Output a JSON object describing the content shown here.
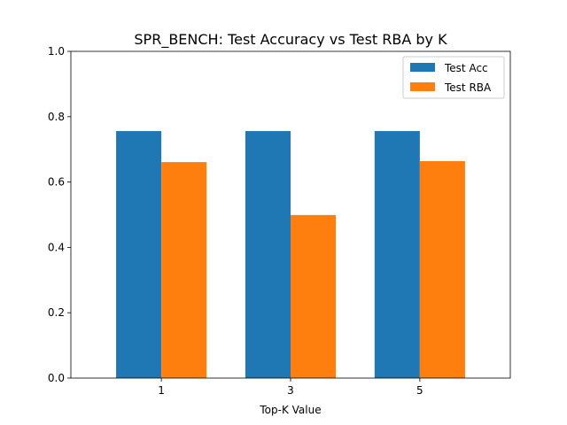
{
  "chart_data": {
    "type": "bar",
    "title": "SPR_BENCH: Test Accuracy vs Test RBA by K",
    "xlabel": "Top-K Value",
    "ylabel": "",
    "categories": [
      "1",
      "3",
      "5"
    ],
    "series": [
      {
        "name": "Test Acc",
        "color": "#1f77b4",
        "values": [
          0.756,
          0.756,
          0.756
        ]
      },
      {
        "name": "Test RBA",
        "color": "#ff7f0e",
        "values": [
          0.661,
          0.499,
          0.664
        ]
      }
    ],
    "ylim": [
      0,
      1.0
    ],
    "yticks": [
      "0.0",
      "0.2",
      "0.4",
      "0.6",
      "0.8",
      "1.0"
    ],
    "grid": false,
    "legend_position": "top-right"
  }
}
